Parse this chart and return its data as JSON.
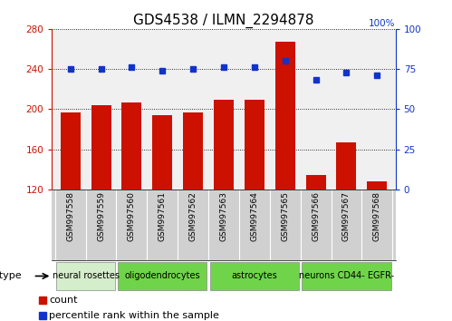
{
  "title": "GDS4538 / ILMN_2294878",
  "samples": [
    "GSM997558",
    "GSM997559",
    "GSM997560",
    "GSM997561",
    "GSM997562",
    "GSM997563",
    "GSM997564",
    "GSM997565",
    "GSM997566",
    "GSM997567",
    "GSM997568"
  ],
  "counts": [
    197,
    204,
    207,
    194,
    197,
    209,
    209,
    267,
    134,
    167,
    128
  ],
  "percentile_ranks": [
    75,
    75,
    76,
    74,
    75,
    76,
    76,
    80,
    68,
    73,
    71
  ],
  "cell_types": [
    {
      "label": "neural rosettes",
      "start": 0,
      "end": 2
    },
    {
      "label": "oligodendrocytes",
      "start": 2,
      "end": 5
    },
    {
      "label": "astrocytes",
      "start": 5,
      "end": 8
    },
    {
      "label": "neurons CD44- EGFR-",
      "start": 8,
      "end": 11
    }
  ],
  "ct_colors": [
    "#d4edca",
    "#6fd44a",
    "#6fd44a",
    "#6fd44a"
  ],
  "ylim_left": [
    120,
    280
  ],
  "ylim_right": [
    0,
    100
  ],
  "yticks_left": [
    120,
    160,
    200,
    240,
    280
  ],
  "yticks_right": [
    0,
    25,
    50,
    75,
    100
  ],
  "bar_color": "#cc1100",
  "dot_color": "#1133cc",
  "bg_color": "#ffffff",
  "plot_bg": "#f0f0f0",
  "legend_count_label": "count",
  "legend_pct_label": "percentile rank within the sample",
  "title_fontsize": 11,
  "tick_fontsize": 7.5,
  "sample_fontsize": 6.5,
  "ct_fontsize": 7,
  "legend_fontsize": 8
}
